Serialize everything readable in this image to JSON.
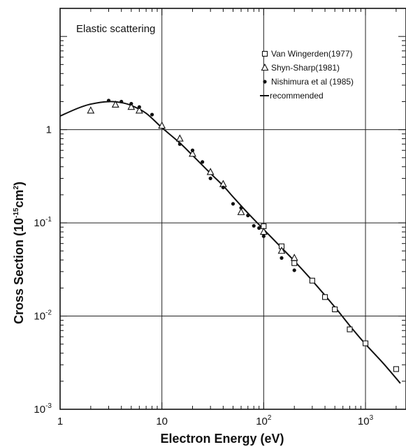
{
  "chart_data": {
    "type": "scatter",
    "title": "",
    "annotation": "Elastic scattering",
    "xlabel": "Electron Energy (eV)",
    "ylabel": "Cross Section (10",
    "ylabel_exp": "-15",
    "ylabel_unit": "cm",
    "ylabel_unit_exp": "2",
    "ylabel_close": ")",
    "x_scale": "log",
    "y_scale": "log",
    "xlim": [
      1,
      2500
    ],
    "ylim": [
      0.001,
      20
    ],
    "grid": "major",
    "legend_position": "top-right",
    "x_ticks": [
      {
        "value": 1,
        "base": "1",
        "exp": ""
      },
      {
        "value": 10,
        "base": "10",
        "exp": ""
      },
      {
        "value": 100,
        "base": "10",
        "exp": "2"
      },
      {
        "value": 1000,
        "base": "10",
        "exp": "3"
      }
    ],
    "y_ticks": [
      {
        "value": 0.001,
        "base": "10",
        "exp": "-3"
      },
      {
        "value": 0.01,
        "base": "10",
        "exp": "-2"
      },
      {
        "value": 0.1,
        "base": "10",
        "exp": "-1"
      },
      {
        "value": 1,
        "base": "1",
        "exp": ""
      }
    ],
    "series": [
      {
        "name": "Van Wingerden(1977)",
        "marker": "square",
        "points": [
          [
            100,
            0.092
          ],
          [
            150,
            0.056
          ],
          [
            200,
            0.037
          ],
          [
            300,
            0.024
          ],
          [
            400,
            0.016
          ],
          [
            500,
            0.0118
          ],
          [
            700,
            0.0072
          ],
          [
            1000,
            0.0051
          ],
          [
            2000,
            0.0027
          ]
        ]
      },
      {
        "name": "Shyn-Sharp(1981)",
        "marker": "triangle",
        "points": [
          [
            2,
            1.6
          ],
          [
            3.5,
            1.85
          ],
          [
            5,
            1.75
          ],
          [
            6,
            1.6
          ],
          [
            10,
            1.1
          ],
          [
            15,
            0.8
          ],
          [
            20,
            0.55
          ],
          [
            30,
            0.35
          ],
          [
            40,
            0.26
          ],
          [
            60,
            0.13
          ],
          [
            100,
            0.08
          ],
          [
            150,
            0.05
          ],
          [
            200,
            0.042
          ]
        ]
      },
      {
        "name": "Nishimura et al (1985)",
        "marker": "dot",
        "points": [
          [
            3,
            2.05
          ],
          [
            4,
            2.0
          ],
          [
            5,
            1.9
          ],
          [
            6,
            1.75
          ],
          [
            8,
            1.45
          ],
          [
            15,
            0.7
          ],
          [
            20,
            0.6
          ],
          [
            25,
            0.45
          ],
          [
            30,
            0.3
          ],
          [
            40,
            0.24
          ],
          [
            50,
            0.16
          ],
          [
            60,
            0.145
          ],
          [
            70,
            0.12
          ],
          [
            80,
            0.093
          ],
          [
            90,
            0.088
          ],
          [
            100,
            0.072
          ],
          [
            150,
            0.042
          ],
          [
            200,
            0.031
          ]
        ]
      },
      {
        "name": "recommended",
        "marker": "line",
        "points": [
          [
            1,
            1.4
          ],
          [
            1.5,
            1.7
          ],
          [
            2,
            1.88
          ],
          [
            3,
            2.0
          ],
          [
            4,
            1.95
          ],
          [
            5,
            1.82
          ],
          [
            7,
            1.5
          ],
          [
            10,
            1.05
          ],
          [
            15,
            0.72
          ],
          [
            20,
            0.53
          ],
          [
            30,
            0.34
          ],
          [
            40,
            0.25
          ],
          [
            50,
            0.19
          ],
          [
            70,
            0.127
          ],
          [
            100,
            0.085
          ],
          [
            150,
            0.054
          ],
          [
            200,
            0.039
          ],
          [
            300,
            0.024
          ],
          [
            500,
            0.0125
          ],
          [
            700,
            0.0079
          ],
          [
            1000,
            0.005
          ],
          [
            1500,
            0.0031
          ],
          [
            2200,
            0.0019
          ]
        ]
      }
    ]
  }
}
